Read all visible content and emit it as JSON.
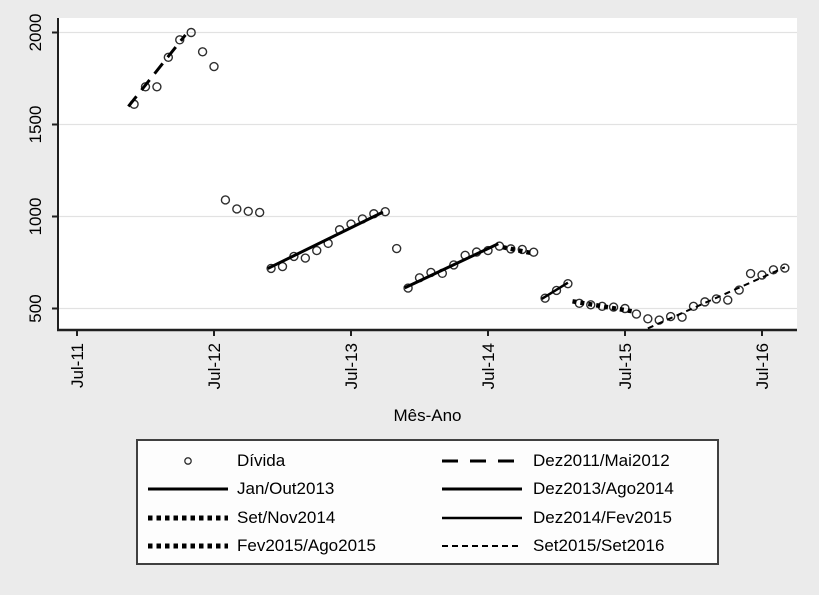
{
  "chart_data": {
    "type": "scatter",
    "title": "",
    "xlabel": "Mês-Ano",
    "ylabel": "",
    "grid": "horizontal",
    "legend_position": "bottom",
    "x_axis": {
      "ticks": [
        {
          "label": "Jul-11",
          "month_index": 0
        },
        {
          "label": "Jul-12",
          "month_index": 12
        },
        {
          "label": "Jul-13",
          "month_index": 24
        },
        {
          "label": "Jul-14",
          "month_index": 36
        },
        {
          "label": "Jul-15",
          "month_index": 48
        },
        {
          "label": "Jul-16",
          "month_index": 60
        }
      ]
    },
    "y_axis": {
      "ticks": [
        500,
        1000,
        1500,
        2000
      ],
      "range": [
        370,
        2090
      ]
    },
    "series_name": "Dívida",
    "points": {
      "start_month_index": 5,
      "months": [
        "Dez-11",
        "Jan-12",
        "Fev-12",
        "Mar-12",
        "Abr-12",
        "Mai-12",
        "Jun-12",
        "Jul-12",
        "Ago-12",
        "Set-12",
        "Out-12",
        "Nov-12",
        "Dez-12",
        "Jan-13",
        "Fev-13",
        "Mar-13",
        "Abr-13",
        "Mai-13",
        "Jun-13",
        "Jul-13",
        "Ago-13",
        "Set-13",
        "Out-13",
        "Nov-13",
        "Dez-13",
        "Jan-14",
        "Fev-14",
        "Mar-14",
        "Abr-14",
        "Mai-14",
        "Jun-14",
        "Jul-14",
        "Ago-14",
        "Set-14",
        "Out-14",
        "Nov-14",
        "Dez-14",
        "Jan-15",
        "Fev-15",
        "Mar-15",
        "Abr-15",
        "Mai-15",
        "Jun-15",
        "Jul-15",
        "Ago-15",
        "Set-15",
        "Out-15",
        "Nov-15",
        "Dez-15",
        "Jan-16",
        "Fev-16",
        "Mar-16",
        "Abr-16",
        "Mai-16",
        "Jun-16",
        "Jul-16",
        "Ago-16",
        "Set-16"
      ],
      "values": [
        1610,
        1705,
        1705,
        1865,
        1960,
        2000,
        1895,
        1815,
        1090,
        1041,
        1028,
        1022,
        718,
        728,
        783,
        774,
        815,
        854,
        928,
        959,
        987,
        1015,
        1026,
        826,
        611,
        667,
        696,
        691,
        737,
        789,
        807,
        815,
        839,
        824,
        821,
        806,
        556,
        598,
        635,
        528,
        520,
        512,
        508,
        500,
        470,
        444,
        437,
        456,
        453,
        512,
        536,
        552,
        546,
        600,
        690,
        682,
        710,
        720
      ]
    },
    "segments": [
      {
        "name": "Dez2011/Mai2012",
        "style": "longdash",
        "x_months": [
          4.5,
          9.5
        ],
        "values": [
          1598,
          1987
        ]
      },
      {
        "name": "Jan/Out2013",
        "style": "solid",
        "x_months": [
          16.7,
          26.8
        ],
        "values": [
          717,
          1024
        ]
      },
      {
        "name": "Dez2013/Ago2014",
        "style": "solid",
        "x_months": [
          28.7,
          36.9
        ],
        "values": [
          612,
          852
        ]
      },
      {
        "name": "Set/Nov2014",
        "style": "heavydot",
        "x_months": [
          37.3,
          39.9
        ],
        "values": [
          833,
          800
        ]
      },
      {
        "name": "Dez2014/Fev2015",
        "style": "solid_thin",
        "x_months": [
          40.7,
          43.0
        ],
        "values": [
          552,
          640
        ]
      },
      {
        "name": "Fev2015/Ago2015",
        "style": "heavydot",
        "x_months": [
          43.4,
          48.8
        ],
        "values": [
          539,
          483
        ]
      },
      {
        "name": "Set2015/Set2016",
        "style": "shortdash",
        "x_months": [
          50.0,
          62.0
        ],
        "values": [
          392,
          724
        ]
      }
    ]
  },
  "legend": {
    "entries": [
      {
        "label": "Dívida",
        "symbol": "circle"
      },
      {
        "label": "Dez2011/Mai2012",
        "symbol": "longdash"
      },
      {
        "label": "Jan/Out2013",
        "symbol": "solid"
      },
      {
        "label": "Dez2013/Ago2014",
        "symbol": "solid"
      },
      {
        "label": "Set/Nov2014",
        "symbol": "heavydot"
      },
      {
        "label": "Dez2014/Fev2015",
        "symbol": "solid_thin"
      },
      {
        "label": "Fev2015/Ago2015",
        "symbol": "heavydot"
      },
      {
        "label": "Set2015/Set2016",
        "symbol": "shortdash"
      }
    ]
  },
  "colors": {
    "background": "#ebebeb",
    "plot_background": "#ffffff",
    "gridline": "#e2e2e2",
    "axis": "#1f1f1f",
    "marker": "#2e2e2e",
    "line": "#000000",
    "legend_border": "#404040",
    "legend_background": "#fdfdfd",
    "text": "#000000"
  }
}
